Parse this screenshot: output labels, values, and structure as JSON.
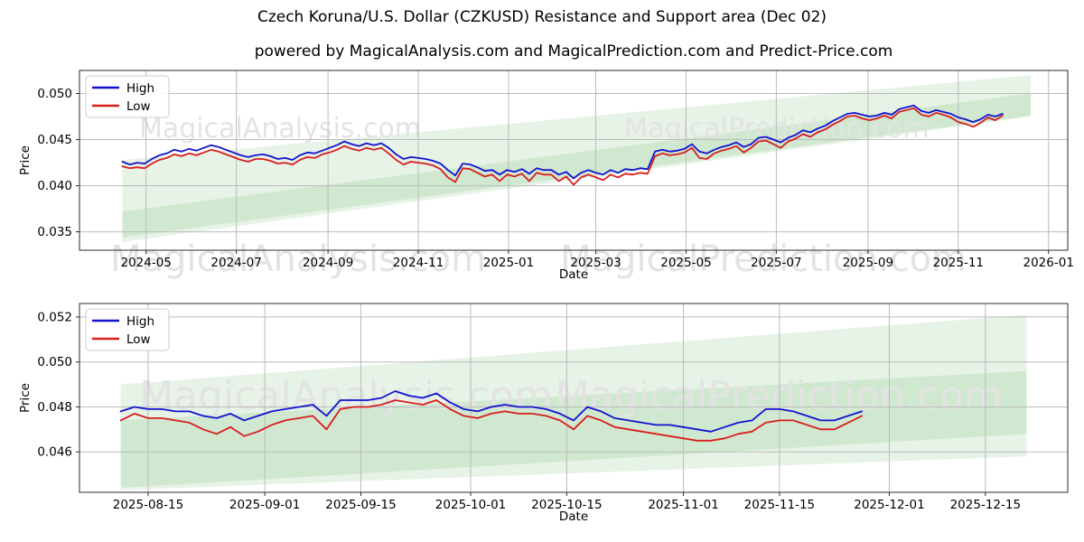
{
  "title": "Czech Koruna/U.S. Dollar (CZKUSD) Resistance and Support area (Dec 02)",
  "subtitle": "powered by MagicalAnalysis.com and MagicalPrediction.com and Predict-Price.com",
  "watermarks": {
    "left": "MagicalAnalysis.com",
    "right": "MagicalPrediction.com"
  },
  "colors": {
    "high": "#1212d0",
    "low": "#d81e1e",
    "band": "rgba(60,160,60,0.13)",
    "grid": "#bbbbbb",
    "spine": "#2b2b2b",
    "watermark": "#e3e3e3",
    "text": "#000000",
    "legend_border": "#cccccc",
    "background": "#ffffff"
  },
  "chart_data": [
    {
      "type": "line",
      "xlabel": "Date",
      "ylabel": "Price",
      "grid": true,
      "legend_position": "upper left",
      "legend": [
        "High",
        "Low"
      ],
      "xlim": [
        "2024-03-17",
        "2026-01-14"
      ],
      "ylim": [
        0.033,
        0.0525
      ],
      "yticks": [
        0.035,
        0.04,
        0.045,
        0.05
      ],
      "xticks": [
        {
          "label": "2024-05",
          "date": "2024-05-01"
        },
        {
          "label": "2024-07",
          "date": "2024-07-01"
        },
        {
          "label": "2024-09",
          "date": "2024-09-01"
        },
        {
          "label": "2024-11",
          "date": "2024-11-01"
        },
        {
          "label": "2025-01",
          "date": "2025-01-01"
        },
        {
          "label": "2025-03",
          "date": "2025-03-01"
        },
        {
          "label": "2025-05",
          "date": "2025-05-01"
        },
        {
          "label": "2025-07",
          "date": "2025-07-01"
        },
        {
          "label": "2025-09",
          "date": "2025-09-01"
        },
        {
          "label": "2025-11",
          "date": "2025-11-01"
        },
        {
          "label": "2026-01",
          "date": "2026-01-01"
        }
      ],
      "bands": [
        {
          "name": "outer-support-resistance-area",
          "x": [
            "2024-04-15",
            "2025-12-20"
          ],
          "top": [
            0.0428,
            0.052
          ],
          "bottom": [
            0.0339,
            0.0475
          ]
        },
        {
          "name": "inner-support-resistance-area",
          "x": [
            "2024-04-15",
            "2025-12-20"
          ],
          "top": [
            0.0372,
            0.05
          ],
          "bottom": [
            0.0344,
            0.0476
          ]
        }
      ],
      "series": [
        {
          "name": "High",
          "start_date": "2024-04-15",
          "step_days": 5,
          "values": [
            0.0426,
            0.0423,
            0.0425,
            0.0424,
            0.0429,
            0.0433,
            0.0435,
            0.0439,
            0.0437,
            0.044,
            0.0438,
            0.0441,
            0.0444,
            0.0442,
            0.0439,
            0.0436,
            0.0433,
            0.0431,
            0.0433,
            0.0434,
            0.0432,
            0.0429,
            0.043,
            0.0428,
            0.0433,
            0.0436,
            0.0435,
            0.0438,
            0.0441,
            0.0444,
            0.0448,
            0.0445,
            0.0443,
            0.0446,
            0.0444,
            0.0446,
            0.0441,
            0.0434,
            0.0429,
            0.0431,
            0.043,
            0.0429,
            0.0427,
            0.0424,
            0.0417,
            0.0411,
            0.0424,
            0.0423,
            0.042,
            0.0416,
            0.0417,
            0.0412,
            0.0417,
            0.0415,
            0.0418,
            0.0413,
            0.0419,
            0.0417,
            0.0417,
            0.0412,
            0.0415,
            0.0408,
            0.0414,
            0.0417,
            0.0414,
            0.0412,
            0.0417,
            0.0414,
            0.0418,
            0.0417,
            0.0419,
            0.0418,
            0.0437,
            0.0439,
            0.0437,
            0.0438,
            0.044,
            0.0445,
            0.0437,
            0.0435,
            0.0439,
            0.0442,
            0.0444,
            0.0447,
            0.0442,
            0.0445,
            0.0452,
            0.0453,
            0.045,
            0.0447,
            0.0452,
            0.0455,
            0.046,
            0.0458,
            0.0462,
            0.0465,
            0.047,
            0.0474,
            0.0478,
            0.0479,
            0.0477,
            0.0475,
            0.0476,
            0.0479,
            0.0477,
            0.0483,
            0.0485,
            0.0487,
            0.0481,
            0.0479,
            0.0482,
            0.048,
            0.0478,
            0.0474,
            0.0472,
            0.0469,
            0.0472,
            0.0477,
            0.0475,
            0.0478
          ]
        },
        {
          "name": "Low",
          "start_date": "2024-04-15",
          "step_days": 5,
          "values": [
            0.0421,
            0.0419,
            0.042,
            0.0419,
            0.0424,
            0.0428,
            0.043,
            0.0434,
            0.0432,
            0.0435,
            0.0433,
            0.0436,
            0.0439,
            0.0437,
            0.0434,
            0.0431,
            0.0428,
            0.0426,
            0.0429,
            0.0429,
            0.0427,
            0.0424,
            0.0425,
            0.0423,
            0.0428,
            0.0431,
            0.043,
            0.0434,
            0.0436,
            0.0439,
            0.0443,
            0.044,
            0.0438,
            0.0441,
            0.0439,
            0.0441,
            0.0435,
            0.0428,
            0.0423,
            0.0426,
            0.0425,
            0.0424,
            0.0422,
            0.0418,
            0.0409,
            0.0404,
            0.0419,
            0.0418,
            0.0414,
            0.041,
            0.0412,
            0.0405,
            0.0412,
            0.041,
            0.0413,
            0.0405,
            0.0414,
            0.0412,
            0.0412,
            0.0405,
            0.041,
            0.0401,
            0.0409,
            0.0412,
            0.0409,
            0.0406,
            0.0412,
            0.0409,
            0.0413,
            0.0412,
            0.0414,
            0.0413,
            0.0432,
            0.0435,
            0.0433,
            0.0434,
            0.0436,
            0.0441,
            0.043,
            0.0429,
            0.0435,
            0.0438,
            0.044,
            0.0443,
            0.0436,
            0.0441,
            0.0448,
            0.0449,
            0.0445,
            0.0441,
            0.0448,
            0.0451,
            0.0456,
            0.0453,
            0.0458,
            0.0461,
            0.0466,
            0.047,
            0.0475,
            0.0476,
            0.0473,
            0.0471,
            0.0473,
            0.0476,
            0.0473,
            0.048,
            0.0482,
            0.0484,
            0.0477,
            0.0475,
            0.0479,
            0.0477,
            0.0474,
            0.0469,
            0.0467,
            0.0464,
            0.0468,
            0.0474,
            0.0471,
            0.0476
          ]
        }
      ]
    },
    {
      "type": "line",
      "xlabel": "Date",
      "ylabel": "Price",
      "grid": true,
      "legend_position": "upper left",
      "legend": [
        "High",
        "Low"
      ],
      "xlim": [
        "2025-08-05",
        "2025-12-27"
      ],
      "ylim": [
        0.0442,
        0.0526
      ],
      "yticks": [
        0.046,
        0.048,
        0.05,
        0.052
      ],
      "xticks": [
        {
          "label": "2025-08-15",
          "date": "2025-08-15"
        },
        {
          "label": "2025-09-01",
          "date": "2025-09-01"
        },
        {
          "label": "2025-09-15",
          "date": "2025-09-15"
        },
        {
          "label": "2025-10-01",
          "date": "2025-10-01"
        },
        {
          "label": "2025-10-15",
          "date": "2025-10-15"
        },
        {
          "label": "2025-11-01",
          "date": "2025-11-01"
        },
        {
          "label": "2025-11-15",
          "date": "2025-11-15"
        },
        {
          "label": "2025-12-01",
          "date": "2025-12-01"
        },
        {
          "label": "2025-12-15",
          "date": "2025-12-15"
        }
      ],
      "bands": [
        {
          "name": "outer-support-resistance-area",
          "x": [
            "2025-08-11",
            "2025-12-21"
          ],
          "top": [
            0.049,
            0.0521
          ],
          "bottom": [
            0.0443,
            0.0458
          ]
        },
        {
          "name": "inner-support-resistance-area",
          "x": [
            "2025-08-11",
            "2025-12-21"
          ],
          "top": [
            0.0474,
            0.0496
          ],
          "bottom": [
            0.0444,
            0.0468
          ]
        }
      ],
      "series": [
        {
          "name": "High",
          "start_date": "2025-08-11",
          "step_days": 2,
          "values": [
            0.0478,
            0.048,
            0.0479,
            0.0479,
            0.0478,
            0.0478,
            0.0476,
            0.0475,
            0.0477,
            0.0474,
            0.0476,
            0.0478,
            0.0479,
            0.048,
            0.0481,
            0.0476,
            0.0483,
            0.0483,
            0.0483,
            0.0484,
            0.0487,
            0.0485,
            0.0484,
            0.0486,
            0.0482,
            0.0479,
            0.0478,
            0.048,
            0.0481,
            0.048,
            0.048,
            0.0479,
            0.0477,
            0.0474,
            0.048,
            0.0478,
            0.0475,
            0.0474,
            0.0473,
            0.0472,
            0.0472,
            0.0471,
            0.047,
            0.0469,
            0.0471,
            0.0473,
            0.0474,
            0.0479,
            0.0479,
            0.0478,
            0.0476,
            0.0474,
            0.0474,
            0.0476,
            0.0478
          ]
        },
        {
          "name": "Low",
          "start_date": "2025-08-11",
          "step_days": 2,
          "values": [
            0.0474,
            0.0477,
            0.0475,
            0.0475,
            0.0474,
            0.0473,
            0.047,
            0.0468,
            0.0471,
            0.0467,
            0.0469,
            0.0472,
            0.0474,
            0.0475,
            0.0476,
            0.047,
            0.0479,
            0.048,
            0.048,
            0.0481,
            0.0483,
            0.0482,
            0.0481,
            0.0483,
            0.0479,
            0.0476,
            0.0475,
            0.0477,
            0.0478,
            0.0477,
            0.0477,
            0.0476,
            0.0474,
            0.047,
            0.0476,
            0.0474,
            0.0471,
            0.047,
            0.0469,
            0.0468,
            0.0467,
            0.0466,
            0.0465,
            0.0465,
            0.0466,
            0.0468,
            0.0469,
            0.0473,
            0.0474,
            0.0474,
            0.0472,
            0.047,
            0.047,
            0.0473,
            0.0476
          ]
        }
      ]
    }
  ]
}
